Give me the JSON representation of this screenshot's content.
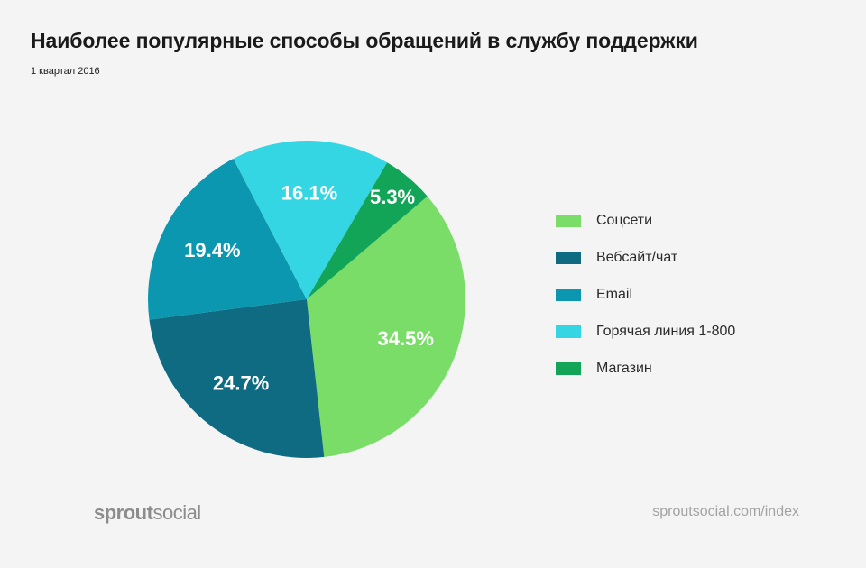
{
  "header": {
    "title": "Наиболее популярные способы обращений в службу поддержки",
    "subtitle": "1 квартал 2016"
  },
  "chart_data": {
    "type": "pie",
    "title": "Наиболее популярные способы обращений в службу поддержки",
    "subtitle": "1 квартал 2016",
    "legend_position": "right",
    "slices": [
      {
        "label": "Соцсети",
        "value": 34.5,
        "display": "34.5%",
        "color": "#79dd68"
      },
      {
        "label": "Вебсайт/чат",
        "value": 24.7,
        "display": "24.7%",
        "color": "#0e6b82"
      },
      {
        "label": "Email",
        "value": 19.4,
        "display": "19.4%",
        "color": "#0b97b0"
      },
      {
        "label": "Горячая линия 1-800",
        "value": 16.1,
        "display": "16.1%",
        "color": "#35d6e3"
      },
      {
        "label": "Магазин",
        "value": 5.3,
        "display": "5.3%",
        "color": "#12a558"
      }
    ]
  },
  "legend": {
    "items": [
      {
        "label": "Соцсети",
        "color": "#79dd68"
      },
      {
        "label": "Вебсайт/чат",
        "color": "#0e6b82"
      },
      {
        "label": "Email",
        "color": "#0b97b0"
      },
      {
        "label": "Горячая линия 1-800",
        "color": "#35d6e3"
      },
      {
        "label": "Магазин",
        "color": "#12a558"
      }
    ]
  },
  "footer": {
    "logo_part1": "sprout",
    "logo_part2": "social",
    "url": "sproutsocial.com/index"
  }
}
